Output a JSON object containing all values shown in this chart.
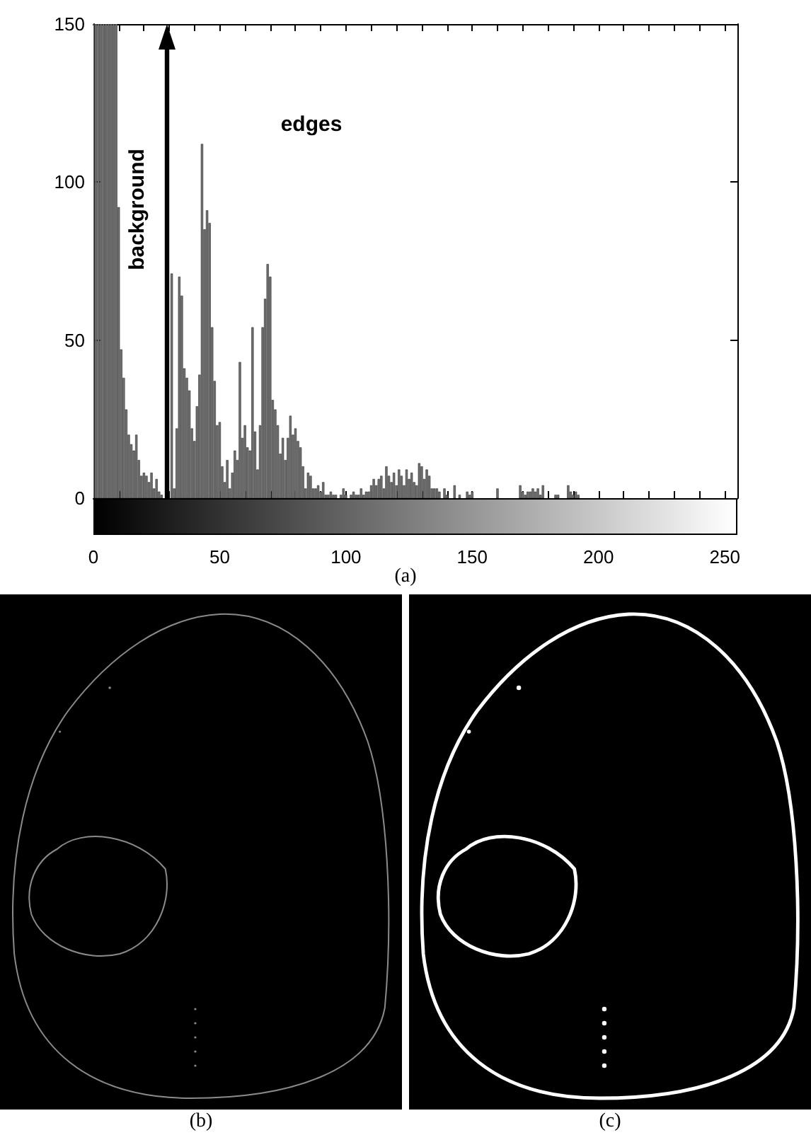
{
  "chart_data": {
    "type": "bar",
    "annotations": [
      "background",
      "edges",
      "(a)",
      "(b)",
      "(c)"
    ],
    "x": [
      0,
      1,
      2,
      3,
      4,
      5,
      6,
      7,
      8,
      9,
      10,
      11,
      12,
      13,
      14,
      15,
      16,
      17,
      18,
      19,
      20,
      21,
      22,
      23,
      24,
      25,
      26,
      27,
      31,
      32,
      33,
      34,
      35,
      36,
      37,
      38,
      39,
      40,
      41,
      42,
      43,
      44,
      45,
      46,
      47,
      48,
      49,
      50,
      51,
      52,
      53,
      54,
      55,
      56,
      57,
      58,
      59,
      60,
      61,
      62,
      63,
      64,
      65,
      66,
      67,
      68,
      69,
      70,
      71,
      72,
      73,
      74,
      75,
      76,
      77,
      78,
      79,
      80,
      81,
      82,
      83,
      84,
      85,
      86,
      87,
      88,
      89,
      90,
      91,
      92,
      93,
      94,
      95,
      96,
      98,
      99,
      100,
      102,
      103,
      104,
      105,
      106,
      107,
      108,
      109,
      110,
      111,
      112,
      113,
      114,
      115,
      116,
      117,
      118,
      119,
      120,
      121,
      122,
      123,
      124,
      125,
      126,
      127,
      128,
      129,
      130,
      131,
      132,
      133,
      134,
      135,
      136,
      137,
      139,
      140,
      143,
      145,
      148,
      149,
      150,
      160,
      169,
      170,
      171,
      172,
      173,
      174,
      175,
      176,
      177,
      178,
      183,
      184,
      188,
      189,
      190,
      191,
      192
    ],
    "values": [
      150,
      150,
      150,
      150,
      150,
      150,
      150,
      150,
      150,
      150,
      92,
      47,
      38,
      28,
      20,
      17,
      15,
      20,
      12,
      7,
      8,
      7,
      5,
      8,
      3,
      6,
      2,
      1,
      71,
      3,
      22,
      70,
      64,
      41,
      38,
      34,
      22,
      18,
      29,
      39,
      112,
      85,
      91,
      87,
      54,
      37,
      23,
      24,
      10,
      5,
      12,
      3,
      8,
      15,
      12,
      43,
      19,
      23,
      16,
      15,
      54,
      21,
      9,
      23,
      54,
      63,
      74,
      70,
      31,
      28,
      23,
      14,
      19,
      12,
      19,
      26,
      20,
      22,
      18,
      16,
      10,
      3,
      8,
      7,
      3,
      3,
      4,
      2,
      5,
      1,
      1,
      2,
      1,
      1,
      1,
      3,
      1,
      1,
      2,
      1,
      1,
      3,
      1,
      2,
      2,
      4,
      6,
      4,
      6,
      7,
      3,
      10,
      7,
      5,
      8,
      4,
      9,
      7,
      4,
      9,
      6,
      8,
      5,
      4,
      11,
      10,
      6,
      9,
      7,
      3,
      3,
      3,
      2,
      3,
      1,
      4,
      1,
      2,
      1,
      2,
      3,
      4,
      2,
      1,
      2,
      2,
      3,
      2,
      3,
      1,
      4,
      1,
      1,
      4,
      2,
      1,
      2,
      1
    ],
    "color": "#707070",
    "xlim": [
      0,
      255
    ],
    "xticks": [
      0,
      {
        "value": 10,
        "label": null
      },
      {
        "value": 20,
        "label": null
      },
      {
        "value": 30,
        "label": null
      },
      {
        "value": 40,
        "label": null
      },
      50,
      {
        "value": 60,
        "label": null
      },
      {
        "value": 70,
        "label": null
      },
      {
        "value": 80,
        "label": null
      },
      {
        "value": 90,
        "label": null
      },
      100,
      {
        "value": 110,
        "label": null
      },
      {
        "value": 120,
        "label": null
      },
      {
        "value": 130,
        "label": null
      },
      {
        "value": 140,
        "label": null
      },
      150,
      {
        "value": 160,
        "label": null
      },
      {
        "value": 170,
        "label": null
      },
      {
        "value": 180,
        "label": null
      },
      {
        "value": 190,
        "label": null
      },
      200,
      {
        "value": 210,
        "label": null
      },
      {
        "value": 220,
        "label": null
      },
      {
        "value": 230,
        "label": null
      },
      {
        "value": 240,
        "label": null
      },
      250
    ],
    "ylim": [
      0,
      150
    ],
    "yticks": [
      0,
      50,
      100,
      150
    ]
  }
}
